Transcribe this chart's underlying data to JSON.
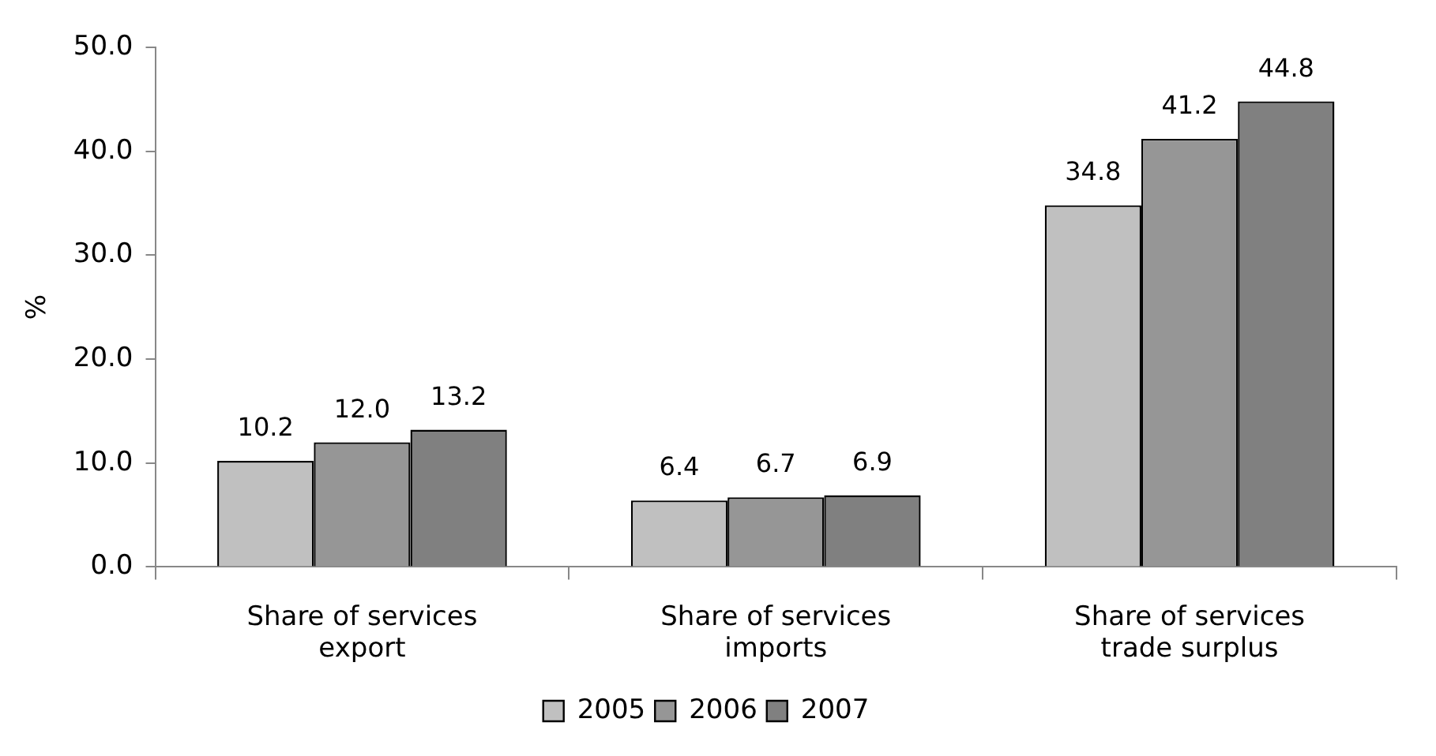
{
  "chart_data": {
    "type": "bar",
    "ylabel": "%",
    "categories": [
      "Share of services export",
      "Share of services imports",
      "Share of services trade surplus"
    ],
    "series": [
      {
        "name": "2005",
        "color": "#c0c0c0",
        "values": [
          10.2,
          6.4,
          34.8
        ],
        "value_labels": [
          "10.2",
          "6.4",
          "34.8"
        ]
      },
      {
        "name": "2006",
        "color": "#969696",
        "values": [
          12.0,
          6.7,
          41.2
        ],
        "value_labels": [
          "12.0",
          "6.7",
          "41.2"
        ]
      },
      {
        "name": "2007",
        "color": "#808080",
        "values": [
          13.2,
          6.9,
          44.8
        ],
        "value_labels": [
          "13.2",
          "6.9",
          "44.8"
        ]
      }
    ],
    "ylim": [
      0,
      50
    ],
    "yticks": [
      {
        "value": 0,
        "label": "0.0"
      },
      {
        "value": 10,
        "label": "10.0"
      },
      {
        "value": 20,
        "label": "20.0"
      },
      {
        "value": 30,
        "label": "30.0"
      },
      {
        "value": 40,
        "label": "40.0"
      },
      {
        "value": 50,
        "label": "50.0"
      }
    ],
    "grid": false,
    "legend": "bottom"
  }
}
